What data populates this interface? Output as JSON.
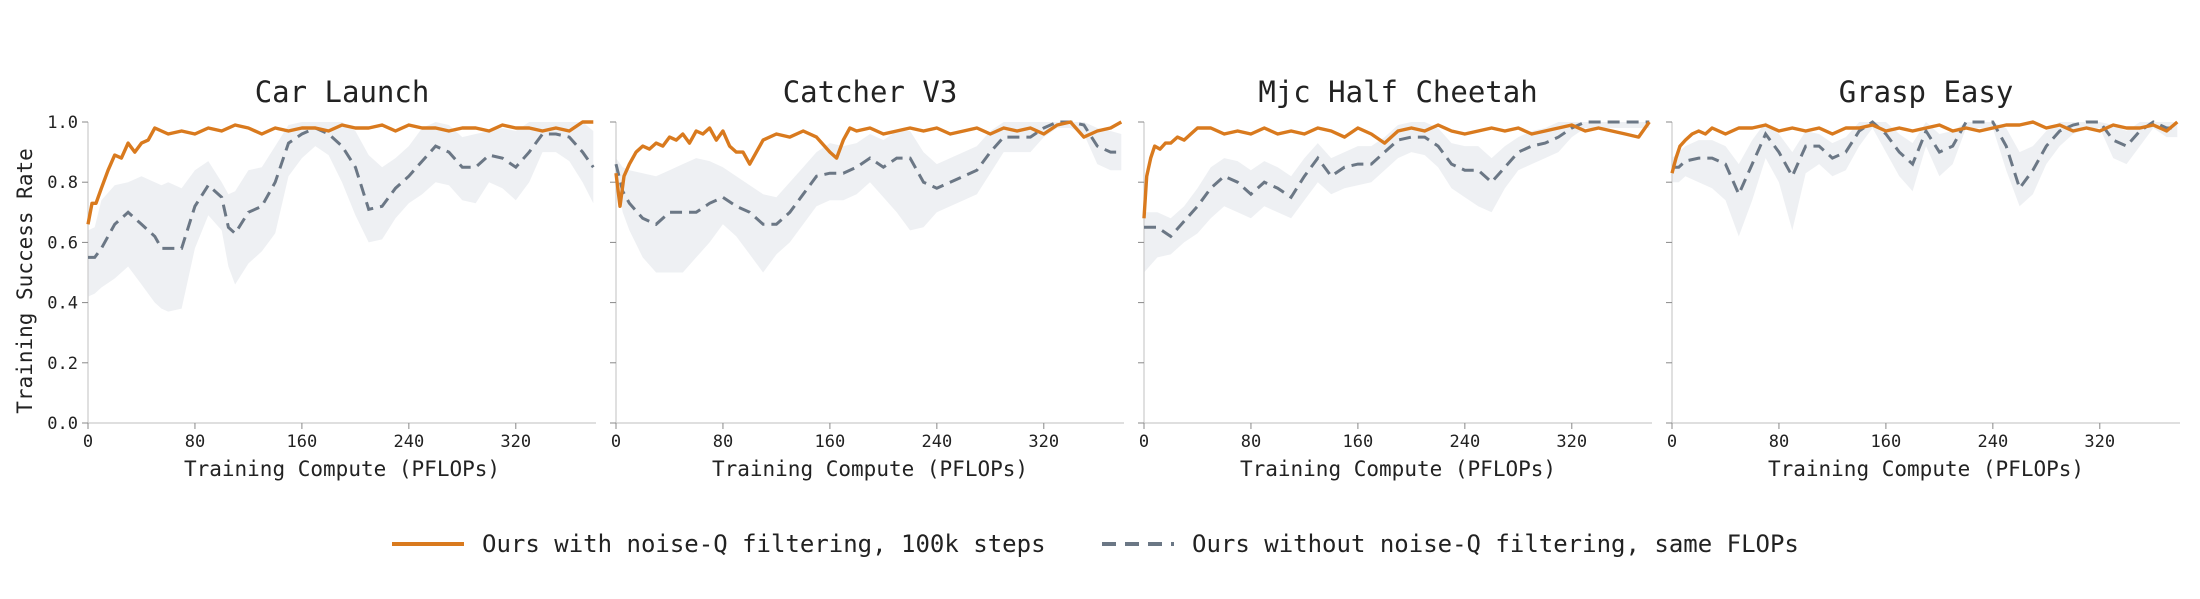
{
  "chart_data": {
    "type": "line",
    "colors": {
      "ours": "#d97a1e",
      "baseline": "#6b7785",
      "band": "#e8ebef"
    },
    "shared": {
      "ylabel": "Training Success Rate",
      "xlabel": "Training Compute (PFLOPs)",
      "xlim": [
        0,
        380
      ],
      "ylim": [
        0,
        1.0
      ],
      "xticks": [
        0,
        80,
        160,
        240,
        320
      ],
      "yticks": [
        "0.0",
        "0.2",
        "0.4",
        "0.6",
        "0.8",
        "1.0"
      ],
      "grid": false
    },
    "legend": {
      "placement": "bottom-center",
      "entries": [
        {
          "label": "Ours with noise-Q filtering, 100k steps",
          "style": "solid",
          "color": "#d97a1e"
        },
        {
          "label": "Ours without noise-Q filtering, same FLOPs",
          "style": "dashed",
          "color": "#6b7785"
        }
      ]
    },
    "panels": [
      {
        "title": "Car Launch",
        "ours": {
          "x": [
            0,
            3,
            6,
            10,
            15,
            20,
            25,
            30,
            35,
            40,
            45,
            50,
            55,
            60,
            70,
            80,
            90,
            100,
            110,
            120,
            130,
            140,
            150,
            160,
            170,
            180,
            190,
            200,
            210,
            220,
            230,
            240,
            250,
            260,
            270,
            280,
            290,
            300,
            310,
            320,
            330,
            340,
            350,
            360,
            370,
            378
          ],
          "y": [
            0.66,
            0.73,
            0.73,
            0.78,
            0.84,
            0.89,
            0.88,
            0.93,
            0.9,
            0.93,
            0.94,
            0.98,
            0.97,
            0.96,
            0.97,
            0.96,
            0.98,
            0.97,
            0.99,
            0.98,
            0.96,
            0.98,
            0.97,
            0.98,
            0.98,
            0.97,
            0.99,
            0.98,
            0.98,
            0.99,
            0.97,
            0.99,
            0.98,
            0.98,
            0.97,
            0.98,
            0.98,
            0.97,
            0.99,
            0.98,
            0.98,
            0.97,
            0.98,
            0.97,
            1.0,
            1.0
          ]
        },
        "baseline": {
          "x": [
            0,
            5,
            10,
            20,
            30,
            40,
            50,
            55,
            60,
            70,
            80,
            90,
            100,
            105,
            110,
            120,
            130,
            140,
            150,
            160,
            170,
            180,
            190,
            200,
            210,
            220,
            230,
            240,
            250,
            260,
            270,
            280,
            290,
            300,
            310,
            320,
            330,
            340,
            350,
            360,
            370,
            378
          ],
          "y": [
            0.55,
            0.55,
            0.58,
            0.66,
            0.7,
            0.66,
            0.62,
            0.58,
            0.58,
            0.58,
            0.72,
            0.79,
            0.75,
            0.65,
            0.63,
            0.7,
            0.72,
            0.8,
            0.93,
            0.96,
            0.98,
            0.96,
            0.92,
            0.85,
            0.71,
            0.72,
            0.78,
            0.82,
            0.87,
            0.92,
            0.9,
            0.85,
            0.85,
            0.89,
            0.88,
            0.85,
            0.9,
            0.96,
            0.96,
            0.95,
            0.9,
            0.85
          ]
        },
        "band": {
          "upper": [
            0.64,
            0.65,
            0.74,
            0.79,
            0.8,
            0.82,
            0.8,
            0.79,
            0.8,
            0.78,
            0.84,
            0.87,
            0.8,
            0.76,
            0.77,
            0.84,
            0.85,
            0.92,
            0.99,
            1.0,
            1.0,
            1.0,
            1.0,
            0.97,
            0.89,
            0.85,
            0.88,
            0.92,
            0.98,
            1.0,
            0.99,
            0.95,
            0.96,
            0.97,
            0.98,
            0.97,
            1.0,
            1.0,
            1.0,
            1.0,
            1.0,
            0.97
          ],
          "lower": [
            0.42,
            0.43,
            0.45,
            0.48,
            0.52,
            0.46,
            0.4,
            0.38,
            0.37,
            0.38,
            0.58,
            0.69,
            0.64,
            0.52,
            0.46,
            0.53,
            0.57,
            0.63,
            0.82,
            0.88,
            0.92,
            0.89,
            0.8,
            0.69,
            0.6,
            0.61,
            0.68,
            0.73,
            0.76,
            0.8,
            0.79,
            0.74,
            0.73,
            0.8,
            0.78,
            0.74,
            0.8,
            0.9,
            0.9,
            0.87,
            0.8,
            0.73
          ]
        }
      },
      {
        "title": "Catcher V3",
        "ours": {
          "x": [
            0,
            3,
            6,
            10,
            15,
            20,
            25,
            30,
            35,
            40,
            45,
            50,
            55,
            60,
            65,
            70,
            75,
            80,
            85,
            90,
            95,
            100,
            105,
            110,
            120,
            130,
            140,
            150,
            160,
            165,
            170,
            175,
            180,
            190,
            200,
            210,
            220,
            230,
            240,
            250,
            260,
            270,
            280,
            290,
            300,
            310,
            320,
            330,
            340,
            350,
            360,
            370,
            378
          ],
          "y": [
            0.83,
            0.72,
            0.82,
            0.86,
            0.9,
            0.92,
            0.91,
            0.93,
            0.92,
            0.95,
            0.94,
            0.96,
            0.93,
            0.97,
            0.96,
            0.98,
            0.94,
            0.97,
            0.92,
            0.9,
            0.9,
            0.86,
            0.9,
            0.94,
            0.96,
            0.95,
            0.97,
            0.95,
            0.9,
            0.88,
            0.94,
            0.98,
            0.97,
            0.98,
            0.96,
            0.97,
            0.98,
            0.97,
            0.98,
            0.96,
            0.97,
            0.98,
            0.96,
            0.98,
            0.97,
            0.98,
            0.96,
            0.99,
            1.0,
            0.95,
            0.97,
            0.98,
            1.0
          ]
        },
        "baseline": {
          "x": [
            0,
            5,
            10,
            20,
            30,
            40,
            50,
            60,
            70,
            80,
            90,
            100,
            110,
            120,
            130,
            140,
            150,
            160,
            170,
            180,
            190,
            200,
            210,
            220,
            230,
            240,
            250,
            260,
            270,
            280,
            290,
            300,
            310,
            320,
            330,
            340,
            350,
            360,
            370,
            378
          ],
          "y": [
            0.86,
            0.77,
            0.73,
            0.68,
            0.66,
            0.7,
            0.7,
            0.7,
            0.73,
            0.75,
            0.72,
            0.7,
            0.66,
            0.66,
            0.7,
            0.76,
            0.82,
            0.83,
            0.83,
            0.85,
            0.88,
            0.85,
            0.88,
            0.88,
            0.8,
            0.78,
            0.8,
            0.82,
            0.84,
            0.9,
            0.95,
            0.95,
            0.95,
            0.98,
            1.0,
            1.0,
            0.99,
            0.92,
            0.9,
            0.9
          ]
        },
        "band": {
          "upper": [
            0.88,
            0.85,
            0.84,
            0.83,
            0.82,
            0.84,
            0.86,
            0.88,
            0.87,
            0.85,
            0.82,
            0.79,
            0.76,
            0.75,
            0.8,
            0.85,
            0.9,
            0.93,
            0.92,
            0.93,
            0.96,
            0.94,
            0.97,
            0.97,
            0.9,
            0.86,
            0.88,
            0.9,
            0.92,
            0.97,
            1.0,
            1.0,
            1.0,
            1.0,
            1.0,
            1.0,
            1.0,
            0.98,
            0.97,
            0.96
          ],
          "lower": [
            0.82,
            0.7,
            0.64,
            0.55,
            0.5,
            0.5,
            0.5,
            0.55,
            0.6,
            0.66,
            0.62,
            0.56,
            0.5,
            0.56,
            0.6,
            0.66,
            0.72,
            0.74,
            0.74,
            0.76,
            0.8,
            0.75,
            0.7,
            0.64,
            0.65,
            0.7,
            0.72,
            0.74,
            0.76,
            0.83,
            0.9,
            0.9,
            0.9,
            0.95,
            0.98,
            0.98,
            0.96,
            0.86,
            0.84,
            0.84
          ]
        }
      },
      {
        "title": "Mjc Half Cheetah",
        "ours": {
          "x": [
            0,
            2,
            5,
            8,
            12,
            16,
            20,
            25,
            30,
            35,
            40,
            50,
            60,
            70,
            80,
            90,
            100,
            110,
            120,
            130,
            140,
            150,
            160,
            170,
            180,
            190,
            200,
            210,
            220,
            230,
            240,
            250,
            260,
            270,
            280,
            290,
            300,
            310,
            320,
            330,
            340,
            350,
            360,
            370,
            378
          ],
          "y": [
            0.68,
            0.82,
            0.88,
            0.92,
            0.91,
            0.93,
            0.93,
            0.95,
            0.94,
            0.96,
            0.98,
            0.98,
            0.96,
            0.97,
            0.96,
            0.98,
            0.96,
            0.97,
            0.96,
            0.98,
            0.97,
            0.95,
            0.98,
            0.96,
            0.93,
            0.97,
            0.98,
            0.97,
            0.99,
            0.97,
            0.96,
            0.97,
            0.98,
            0.97,
            0.98,
            0.96,
            0.97,
            0.98,
            0.99,
            0.97,
            0.98,
            0.97,
            0.96,
            0.95,
            1.0
          ]
        },
        "baseline": {
          "x": [
            0,
            10,
            20,
            30,
            40,
            50,
            60,
            70,
            80,
            90,
            100,
            110,
            120,
            130,
            140,
            150,
            160,
            170,
            180,
            190,
            200,
            210,
            220,
            230,
            240,
            250,
            260,
            270,
            280,
            290,
            300,
            310,
            320,
            330,
            340,
            350,
            360,
            370,
            378
          ],
          "y": [
            0.65,
            0.65,
            0.62,
            0.67,
            0.72,
            0.78,
            0.82,
            0.8,
            0.76,
            0.8,
            0.78,
            0.75,
            0.82,
            0.88,
            0.82,
            0.85,
            0.86,
            0.86,
            0.9,
            0.94,
            0.95,
            0.95,
            0.92,
            0.86,
            0.84,
            0.84,
            0.8,
            0.85,
            0.9,
            0.92,
            0.93,
            0.95,
            0.98,
            1.0,
            1.0,
            1.0,
            1.0,
            1.0,
            1.0
          ]
        },
        "band": {
          "upper": [
            0.7,
            0.7,
            0.68,
            0.72,
            0.78,
            0.85,
            0.88,
            0.87,
            0.84,
            0.87,
            0.85,
            0.82,
            0.88,
            0.93,
            0.88,
            0.9,
            0.92,
            0.92,
            0.95,
            0.99,
            1.0,
            1.0,
            0.98,
            0.93,
            0.92,
            0.92,
            0.88,
            0.92,
            0.95,
            0.97,
            0.98,
            1.0,
            1.0,
            1.0,
            1.0,
            1.0,
            1.0,
            1.0,
            1.0
          ],
          "lower": [
            0.5,
            0.55,
            0.56,
            0.6,
            0.63,
            0.68,
            0.72,
            0.7,
            0.68,
            0.72,
            0.7,
            0.68,
            0.74,
            0.8,
            0.76,
            0.78,
            0.79,
            0.8,
            0.84,
            0.88,
            0.9,
            0.89,
            0.85,
            0.78,
            0.75,
            0.72,
            0.7,
            0.78,
            0.84,
            0.86,
            0.88,
            0.9,
            0.95,
            0.98,
            0.98,
            0.98,
            0.98,
            0.98,
            0.98
          ]
        }
      },
      {
        "title": "Grasp Easy",
        "ours": {
          "x": [
            0,
            3,
            6,
            10,
            15,
            20,
            25,
            30,
            40,
            50,
            60,
            70,
            80,
            90,
            100,
            110,
            120,
            130,
            140,
            150,
            160,
            170,
            180,
            190,
            200,
            210,
            220,
            230,
            240,
            250,
            260,
            270,
            280,
            290,
            300,
            310,
            320,
            330,
            340,
            350,
            360,
            370,
            378
          ],
          "y": [
            0.83,
            0.88,
            0.92,
            0.94,
            0.96,
            0.97,
            0.96,
            0.98,
            0.96,
            0.98,
            0.98,
            0.99,
            0.97,
            0.98,
            0.97,
            0.98,
            0.96,
            0.98,
            0.98,
            0.99,
            0.97,
            0.98,
            0.97,
            0.98,
            0.99,
            0.97,
            0.98,
            0.97,
            0.98,
            0.99,
            0.99,
            1.0,
            0.98,
            0.99,
            0.97,
            0.98,
            0.97,
            0.99,
            0.98,
            0.98,
            0.99,
            0.97,
            1.0
          ]
        },
        "baseline": {
          "x": [
            0,
            5,
            10,
            20,
            30,
            40,
            50,
            60,
            70,
            80,
            90,
            100,
            110,
            120,
            130,
            140,
            150,
            160,
            170,
            180,
            190,
            200,
            210,
            220,
            230,
            240,
            250,
            260,
            270,
            280,
            290,
            300,
            310,
            320,
            330,
            340,
            350,
            360,
            370,
            378
          ],
          "y": [
            0.85,
            0.85,
            0.87,
            0.88,
            0.88,
            0.86,
            0.76,
            0.86,
            0.96,
            0.9,
            0.82,
            0.92,
            0.92,
            0.88,
            0.9,
            0.97,
            1.0,
            0.96,
            0.9,
            0.86,
            0.97,
            0.9,
            0.92,
            1.0,
            1.0,
            1.0,
            0.92,
            0.78,
            0.84,
            0.92,
            0.97,
            0.99,
            1.0,
            1.0,
            0.94,
            0.92,
            0.97,
            1.0,
            0.98,
            0.98
          ]
        },
        "band": {
          "upper": [
            0.88,
            0.9,
            0.92,
            0.94,
            0.94,
            0.92,
            0.86,
            0.94,
            1.0,
            0.96,
            0.9,
            0.97,
            0.96,
            0.93,
            0.95,
            1.0,
            1.0,
            1.0,
            0.96,
            0.93,
            1.0,
            0.96,
            0.97,
            1.0,
            1.0,
            1.0,
            0.98,
            0.9,
            0.92,
            0.97,
            1.0,
            1.0,
            1.0,
            1.0,
            0.99,
            0.97,
            1.0,
            1.0,
            1.0,
            1.0
          ],
          "lower": [
            0.8,
            0.8,
            0.82,
            0.8,
            0.78,
            0.74,
            0.62,
            0.74,
            0.88,
            0.8,
            0.64,
            0.83,
            0.86,
            0.82,
            0.84,
            0.92,
            0.98,
            0.9,
            0.82,
            0.77,
            0.92,
            0.82,
            0.86,
            0.98,
            0.98,
            0.98,
            0.84,
            0.72,
            0.76,
            0.86,
            0.92,
            0.96,
            0.98,
            0.98,
            0.88,
            0.86,
            0.92,
            0.98,
            0.95,
            0.95
          ]
        }
      }
    ]
  }
}
